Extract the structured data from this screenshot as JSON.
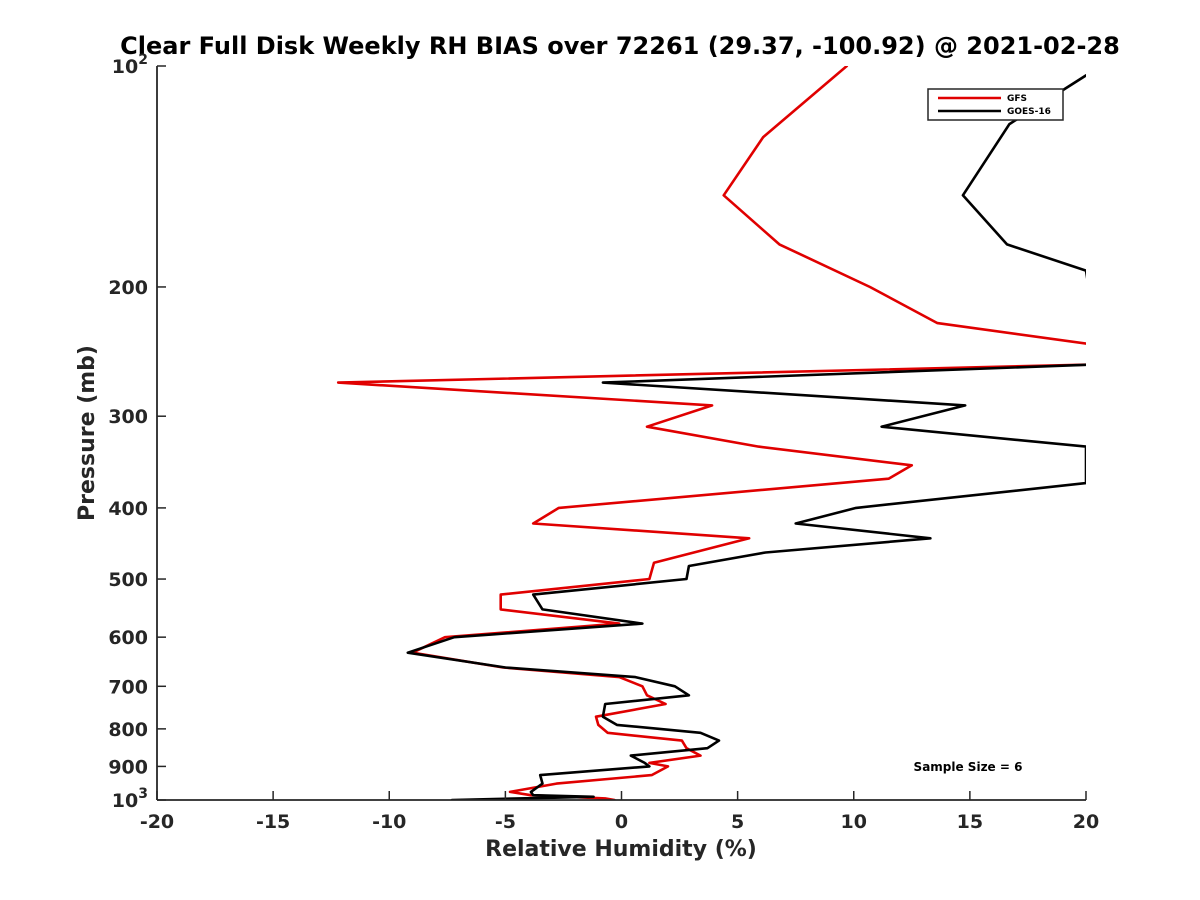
{
  "chart_data": {
    "type": "line",
    "title": "Clear Full Disk Weekly RH BIAS over 72261 (29.37, -100.92) @ 2021-02-28",
    "xlabel": "Relative Humidity (%)",
    "ylabel": "Pressure (mb)",
    "xlim": [
      -20,
      20
    ],
    "ylim": [
      100,
      1000
    ],
    "yscale": "log",
    "y_reversed": true,
    "xticks": [
      {
        "value": -20,
        "label": "-20"
      },
      {
        "value": -15,
        "label": "-15"
      },
      {
        "value": -10,
        "label": "-10"
      },
      {
        "value": -5,
        "label": "-5"
      },
      {
        "value": 0,
        "label": "0"
      },
      {
        "value": 5,
        "label": "5"
      },
      {
        "value": 10,
        "label": "10"
      },
      {
        "value": 15,
        "label": "15"
      },
      {
        "value": 20,
        "label": "20"
      }
    ],
    "yticks": [
      {
        "value": 100,
        "base": "10",
        "exp": "2"
      },
      {
        "value": 200,
        "label": "200"
      },
      {
        "value": 300,
        "label": "300"
      },
      {
        "value": 400,
        "label": "400"
      },
      {
        "value": 500,
        "label": "500"
      },
      {
        "value": 600,
        "label": "600"
      },
      {
        "value": 700,
        "label": "700"
      },
      {
        "value": 800,
        "label": "800"
      },
      {
        "value": 900,
        "label": "900"
      },
      {
        "value": 1000,
        "base": "10",
        "exp": "3"
      }
    ],
    "grid": false,
    "legend_position": "top-right",
    "series": [
      {
        "name": "GFS",
        "color": "#e00000",
        "points": [
          [
            9.7,
            100
          ],
          [
            6.1,
            125
          ],
          [
            4.4,
            150
          ],
          [
            6.8,
            175
          ],
          [
            10.7,
            200
          ],
          [
            13.6,
            224
          ],
          [
            20.5,
            240
          ],
          [
            20.5,
            255
          ],
          [
            -12.2,
            270
          ],
          [
            3.9,
            290
          ],
          [
            1.1,
            310
          ],
          [
            5.9,
            330
          ],
          [
            12.5,
            350
          ],
          [
            11.5,
            365
          ],
          [
            -2.7,
            400
          ],
          [
            -3.8,
            420
          ],
          [
            5.5,
            440
          ],
          [
            1.4,
            475
          ],
          [
            1.2,
            500
          ],
          [
            -5.2,
            525
          ],
          [
            -5.2,
            550
          ],
          [
            -0.1,
            575
          ],
          [
            -7.6,
            600
          ],
          [
            -9.0,
            630
          ],
          [
            -5.1,
            660
          ],
          [
            -0.1,
            680
          ],
          [
            0.9,
            700
          ],
          [
            1.1,
            720
          ],
          [
            1.9,
            740
          ],
          [
            -1.1,
            770
          ],
          [
            -1.0,
            790
          ],
          [
            -0.6,
            810
          ],
          [
            2.6,
            830
          ],
          [
            2.8,
            850
          ],
          [
            3.4,
            870
          ],
          [
            1.2,
            890
          ],
          [
            2.0,
            900
          ],
          [
            1.3,
            925
          ],
          [
            -2.8,
            950
          ],
          [
            -4.8,
            975
          ],
          [
            -3.9,
            985
          ],
          [
            -0.7,
            995
          ],
          [
            -0.3,
            1000
          ]
        ]
      },
      {
        "name": "GOES-16",
        "color": "#000000",
        "points": [
          [
            20.0,
            103
          ],
          [
            16.7,
            120
          ],
          [
            14.7,
            150
          ],
          [
            16.6,
            175
          ],
          [
            20.0,
            190
          ],
          [
            20.5,
            240
          ],
          [
            20.5,
            255
          ],
          [
            -0.8,
            270
          ],
          [
            14.8,
            290
          ],
          [
            11.2,
            310
          ],
          [
            20.0,
            330
          ],
          [
            20.0,
            360
          ],
          [
            20.0,
            370
          ],
          [
            10.1,
            400
          ],
          [
            7.5,
            420
          ],
          [
            13.3,
            440
          ],
          [
            6.2,
            460
          ],
          [
            2.9,
            480
          ],
          [
            2.8,
            500
          ],
          [
            -3.8,
            525
          ],
          [
            -3.4,
            550
          ],
          [
            0.9,
            575
          ],
          [
            -7.2,
            600
          ],
          [
            -9.2,
            630
          ],
          [
            -5.0,
            660
          ],
          [
            0.6,
            680
          ],
          [
            2.3,
            700
          ],
          [
            2.9,
            720
          ],
          [
            -0.7,
            740
          ],
          [
            -0.8,
            770
          ],
          [
            -0.2,
            790
          ],
          [
            3.4,
            810
          ],
          [
            4.2,
            830
          ],
          [
            3.7,
            850
          ],
          [
            0.4,
            870
          ],
          [
            1.0,
            890
          ],
          [
            1.2,
            900
          ],
          [
            -3.5,
            925
          ],
          [
            -3.4,
            950
          ],
          [
            -3.9,
            975
          ],
          [
            -3.8,
            985
          ],
          [
            -1.2,
            990
          ],
          [
            -7.3,
            1000
          ]
        ]
      }
    ],
    "annotation": "Sample Size = 6"
  }
}
